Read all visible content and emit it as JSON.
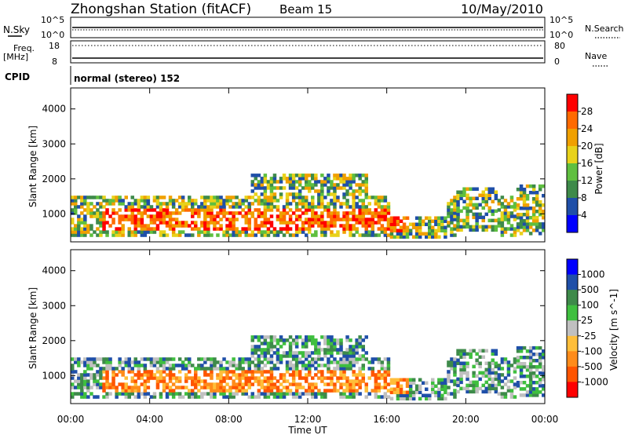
{
  "header": {
    "station": "Zhongshan Station (fitACF)",
    "beam": "Beam 15",
    "date": "10/May/2010"
  },
  "summary_panels": {
    "nsky_label": "N.Sky",
    "nsky_tick_top": "10^5",
    "nsky_tick_bottom": "10^0",
    "nsearch_label": "N.Search",
    "nsearch_tick_top": "10^5",
    "nsearch_tick_bottom": "10^0",
    "freq_label_1": "Freq.",
    "freq_label_2": "[MHz]",
    "freq_tick_top": "18",
    "freq_tick_bottom": "8",
    "nave_label": "Nave",
    "nave_tick_top": "80",
    "nave_tick_bottom": "0",
    "cpid_label": "CPID",
    "cpid_text": "normal (stereo) 152"
  },
  "colors": {
    "power": [
      "#0000ff",
      "#1f4fa8",
      "#3e8a4a",
      "#5fbf3f",
      "#e8d21a",
      "#f0a000",
      "#ff6a00",
      "#ff0000"
    ],
    "velocity": [
      "#ff0000",
      "#ff5500",
      "#ff8c1a",
      "#ffbe3a",
      "#c0c0c0",
      "#3fbf3f",
      "#3e8a4a",
      "#1f4fa8",
      "#0000ff"
    ]
  },
  "chart_data": [
    {
      "type": "heatmap",
      "name": "power",
      "ylabel": "Slant Range [km]",
      "ylim": [
        200,
        4600
      ],
      "yticks": [
        "1000",
        "2000",
        "3000",
        "4000"
      ],
      "colorbar_label": "Power [dB]",
      "colorbar_ticks": [
        "4",
        "8",
        "12",
        "16",
        "20",
        "24",
        "28"
      ],
      "colorbar_range": [
        0,
        32
      ],
      "x_range_hours": [
        0,
        24
      ]
    },
    {
      "type": "heatmap",
      "name": "velocity",
      "ylabel": "Slant Range [km]",
      "ylim": [
        200,
        4600
      ],
      "yticks": [
        "1000",
        "2000",
        "3000",
        "4000"
      ],
      "colorbar_label": "Velocity [m s^-1]",
      "colorbar_ticks": [
        "1000",
        "500",
        "100",
        "25",
        "-25",
        "-100",
        "-500",
        "-1000"
      ],
      "x_range_hours": [
        0,
        24
      ]
    }
  ],
  "x_axis": {
    "label": "Time UT",
    "ticks": [
      "00:00",
      "04:00",
      "08:00",
      "12:00",
      "16:00",
      "20:00",
      "00:00"
    ]
  }
}
